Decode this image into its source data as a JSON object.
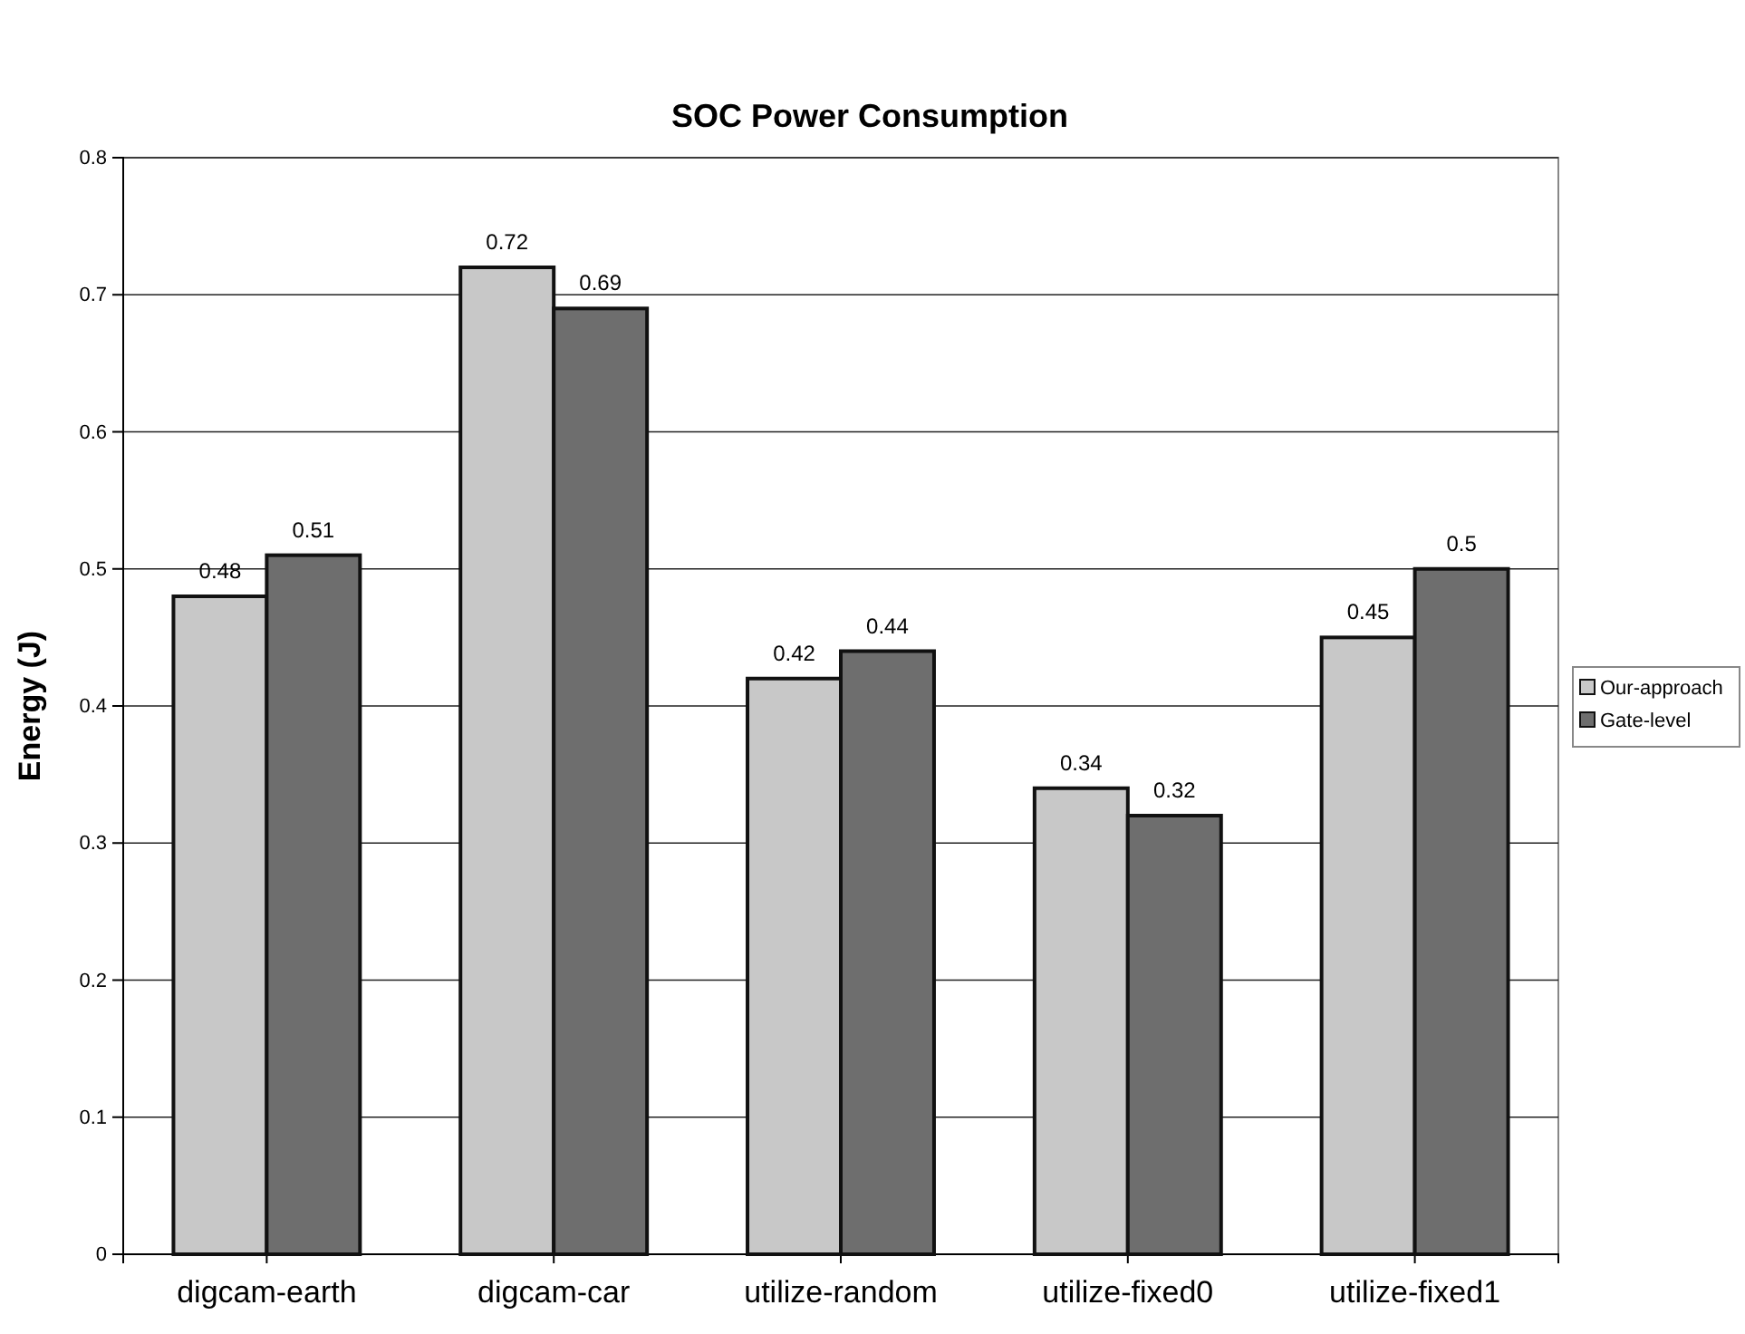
{
  "chart_data": {
    "type": "bar",
    "title": "SOC Power Consumption",
    "ylabel": "Energy (J)",
    "categories": [
      "digcam-earth",
      "digcam-car",
      "utilize-random",
      "utilize-fixed0",
      "utilize-fixed1"
    ],
    "series": [
      {
        "name": "Our-approach",
        "color": "#c8c8c8",
        "values": [
          0.48,
          0.72,
          0.42,
          0.34,
          0.45
        ]
      },
      {
        "name": "Gate-level",
        "color": "#6e6e6e",
        "values": [
          0.51,
          0.69,
          0.44,
          0.32,
          0.5
        ]
      }
    ],
    "ylim": [
      0,
      0.8
    ],
    "yticks": [
      0,
      0.1,
      0.2,
      0.3,
      0.4,
      0.5,
      0.6,
      0.7,
      0.8
    ],
    "grid": "y",
    "legend": "right",
    "data_labels": true
  }
}
